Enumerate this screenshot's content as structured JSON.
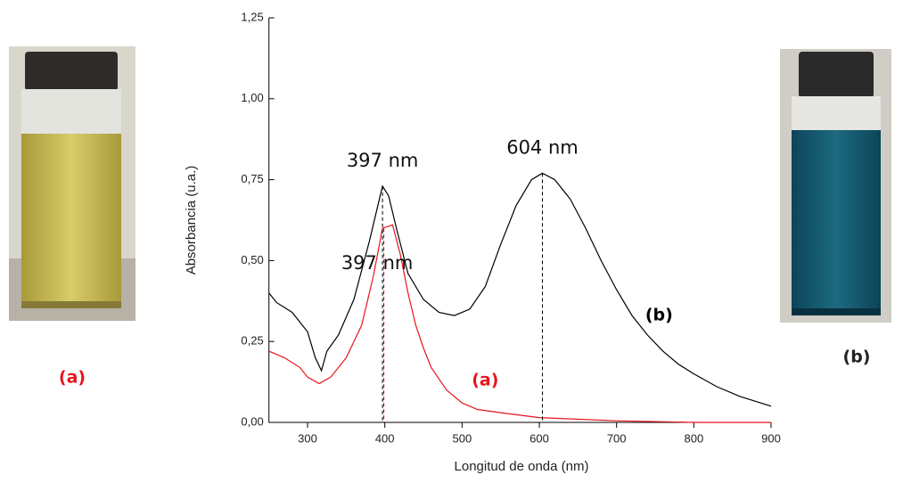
{
  "chart_data": {
    "type": "line",
    "xlabel": "Longitud de onda (nm)",
    "ylabel": "Absorbancia (u.a.)",
    "xlim": [
      250,
      900
    ],
    "ylim": [
      0,
      1.25
    ],
    "xticks": [
      300,
      400,
      500,
      600,
      700,
      800,
      900
    ],
    "yticks": [
      {
        "value": 0,
        "label": "0,00"
      },
      {
        "value": 0.25,
        "label": "0,25"
      },
      {
        "value": 0.5,
        "label": "0,50"
      },
      {
        "value": 0.75,
        "label": "0,75"
      },
      {
        "value": 1.0,
        "label": "1,00"
      },
      {
        "value": 1.25,
        "label": "1,25"
      }
    ],
    "series": [
      {
        "name": "(a)",
        "color": "#e8141c",
        "x": [
          250,
          270,
          290,
          300,
          315,
          330,
          350,
          370,
          385,
          397,
          410,
          420,
          430,
          440,
          450,
          460,
          480,
          500,
          520,
          550,
          600,
          700,
          800,
          900
        ],
        "values": [
          0.22,
          0.2,
          0.17,
          0.14,
          0.12,
          0.14,
          0.2,
          0.3,
          0.45,
          0.6,
          0.61,
          0.52,
          0.4,
          0.3,
          0.23,
          0.17,
          0.1,
          0.06,
          0.04,
          0.03,
          0.015,
          0.005,
          0.0,
          0.0
        ]
      },
      {
        "name": "(b)",
        "color": "#000000",
        "x": [
          250,
          260,
          280,
          300,
          310,
          318,
          325,
          340,
          360,
          380,
          390,
          397,
          405,
          415,
          430,
          450,
          470,
          490,
          510,
          530,
          550,
          570,
          590,
          604,
          620,
          640,
          660,
          680,
          700,
          720,
          740,
          760,
          780,
          800,
          830,
          860,
          900
        ],
        "values": [
          0.4,
          0.37,
          0.34,
          0.28,
          0.2,
          0.16,
          0.22,
          0.27,
          0.38,
          0.56,
          0.66,
          0.73,
          0.7,
          0.6,
          0.46,
          0.38,
          0.34,
          0.33,
          0.35,
          0.42,
          0.55,
          0.67,
          0.75,
          0.77,
          0.75,
          0.69,
          0.6,
          0.5,
          0.41,
          0.33,
          0.27,
          0.22,
          0.18,
          0.15,
          0.11,
          0.08,
          0.05
        ]
      }
    ],
    "annotations": [
      {
        "text": "397 nm",
        "x": 397
      },
      {
        "text": "397 nm",
        "x": 397
      },
      {
        "text": "604 nm",
        "x": 604
      }
    ],
    "photo_captions": [
      "(a)",
      "(b)"
    ]
  }
}
